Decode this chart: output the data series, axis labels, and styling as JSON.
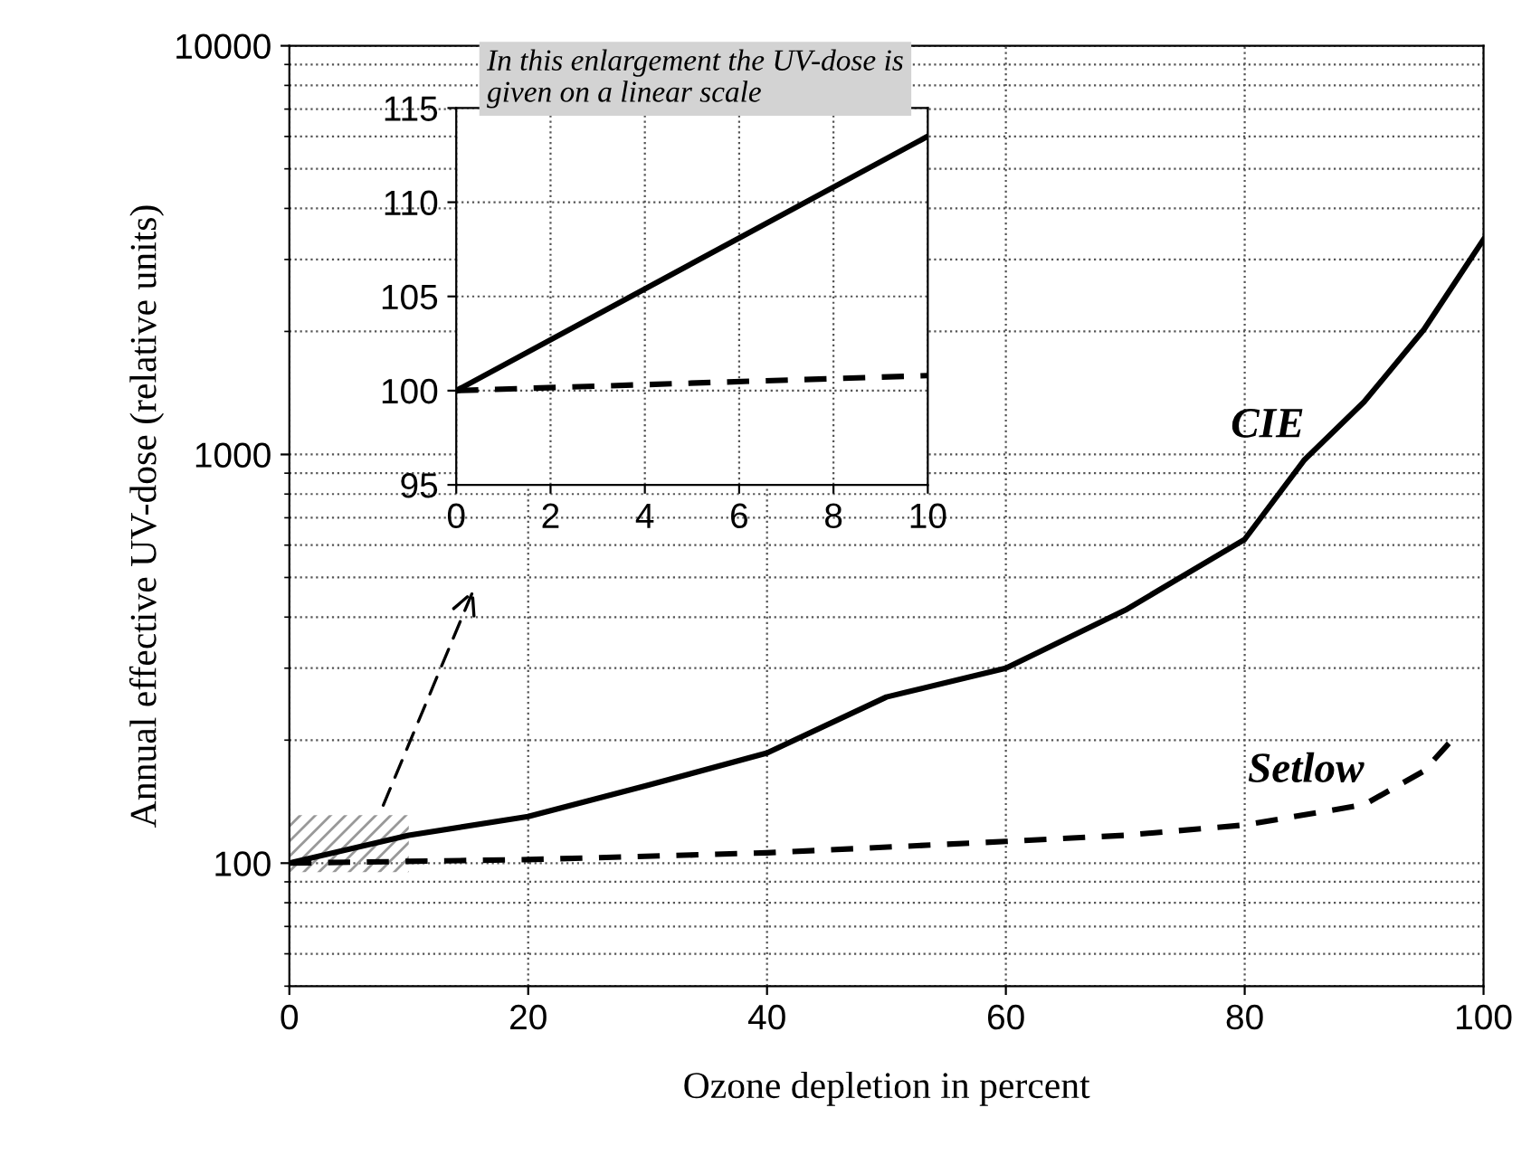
{
  "chart_data": [
    {
      "type": "line",
      "xlabel": "Ozone depletion in percent",
      "ylabel": "Annual effective UV-dose (relative units)",
      "log": "y",
      "xlim": [
        0,
        100
      ],
      "xticks": [
        0,
        20,
        40,
        60,
        80,
        100
      ],
      "ylim": [
        50,
        10000
      ],
      "yticks": [
        100,
        1000,
        10000
      ],
      "grid": true,
      "series": [
        {
          "name": "CIE",
          "color": "#000000",
          "line_style": "solid",
          "x": [
            0,
            10,
            20,
            30,
            40,
            50,
            60,
            70,
            80,
            85,
            90,
            95,
            100
          ],
          "values": [
            100,
            117,
            130,
            155,
            186,
            255,
            300,
            416,
            620,
            970,
            1345,
            2020,
            3360
          ]
        },
        {
          "name": "Setlow",
          "color": "#000000",
          "line_style": "dashed",
          "x": [
            0,
            20,
            40,
            60,
            70,
            80,
            90,
            95,
            98
          ],
          "values": [
            100,
            102,
            106,
            113,
            117,
            124,
            139,
            168,
            210
          ]
        }
      ]
    },
    {
      "type": "line",
      "xlim": [
        0,
        10
      ],
      "xticks": [
        0,
        2,
        4,
        6,
        8,
        10
      ],
      "ylim": [
        95,
        115
      ],
      "yticks": [
        95,
        100,
        105,
        110,
        115
      ],
      "grid": true,
      "annotations": [
        "In this enlargement the UV-dose is given on a linear scale"
      ],
      "series": [
        {
          "color": "#000000",
          "line_style": "solid",
          "x": [
            0,
            10
          ],
          "values": [
            100,
            113.5
          ]
        },
        {
          "color": "#000000",
          "line_style": "dashed",
          "x": [
            0,
            10
          ],
          "values": [
            100,
            100.8
          ]
        }
      ]
    }
  ]
}
